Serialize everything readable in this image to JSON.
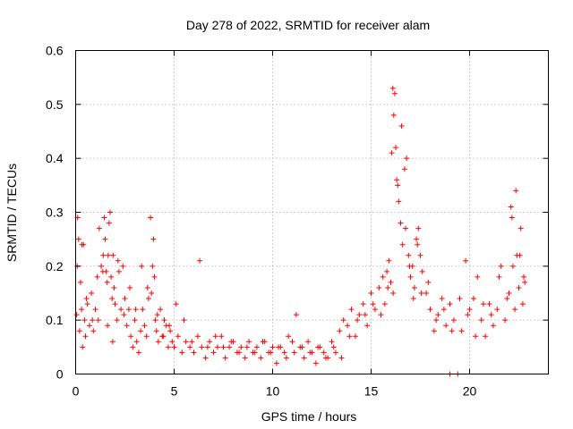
{
  "chart_data": {
    "type": "scatter",
    "title": "Day 278 of 2022, SRMTID for receiver alam",
    "xlabel": "GPS time / hours",
    "ylabel": "SRMTID / TECUs",
    "xlim": [
      0,
      24
    ],
    "ylim": [
      0,
      0.6
    ],
    "xticks": [
      0,
      5,
      10,
      15,
      20
    ],
    "yticks": [
      0,
      0.1,
      0.2,
      0.3,
      0.4,
      0.5,
      0.6
    ],
    "xtick_labels": [
      "0",
      "5",
      "10",
      "15",
      "20"
    ],
    "ytick_labels": [
      "0",
      "0.1",
      "0.2",
      "0.3",
      "0.4",
      "0.5",
      "0.6"
    ],
    "grid": true,
    "marker": "+",
    "series": [
      {
        "name": "alam",
        "color": "#ff0000",
        "x": [
          0.05,
          0.1,
          0.15,
          0.2,
          0.25,
          0.3,
          0.35,
          0.4,
          0.45,
          0.5,
          0.6,
          0.7,
          0.8,
          0.9,
          1.0,
          1.1,
          1.2,
          1.3,
          1.4,
          1.45,
          1.5,
          1.55,
          1.6,
          1.65,
          1.7,
          1.75,
          1.8,
          1.85,
          1.9,
          1.95,
          2.0,
          2.1,
          2.2,
          2.3,
          2.4,
          2.5,
          2.6,
          2.7,
          2.8,
          2.9,
          3.0,
          3.1,
          3.2,
          3.3,
          3.4,
          3.5,
          3.6,
          3.7,
          3.8,
          3.9,
          3.95,
          4.0,
          4.05,
          4.1,
          4.2,
          4.3,
          4.4,
          4.5,
          4.6,
          4.7,
          4.8,
          4.9,
          5.0,
          5.2,
          5.4,
          5.6,
          5.8,
          6.0,
          6.2,
          6.4,
          6.6,
          6.8,
          7.0,
          7.2,
          7.4,
          7.6,
          7.8,
          8.0,
          8.2,
          8.4,
          8.6,
          8.8,
          9.0,
          9.2,
          9.4,
          9.6,
          9.8,
          10.0,
          10.2,
          10.4,
          10.6,
          10.8,
          11.0,
          11.2,
          11.4,
          11.6,
          11.8,
          12.0,
          12.2,
          12.4,
          12.6,
          12.8,
          13.0,
          13.2,
          13.4,
          13.6,
          13.8,
          14.0,
          14.2,
          14.4,
          14.6,
          14.8,
          15.0,
          15.2,
          15.4,
          15.6,
          15.7,
          15.8,
          15.9,
          16.0,
          16.05,
          16.1,
          16.15,
          16.2,
          16.25,
          16.3,
          16.4,
          16.5,
          16.6,
          16.7,
          16.8,
          16.9,
          17.0,
          17.1,
          17.2,
          17.3,
          17.4,
          17.5,
          17.6,
          17.8,
          18.0,
          18.2,
          18.4,
          18.6,
          18.8,
          19.0,
          19.2,
          19.4,
          19.6,
          19.8,
          20.0,
          20.2,
          20.4,
          20.6,
          20.8,
          21.0,
          21.2,
          21.4,
          21.6,
          21.8,
          22.0,
          22.1,
          22.2,
          22.3,
          22.4,
          22.5,
          22.6,
          22.7,
          22.8,
          0.08,
          0.32,
          0.55,
          0.85,
          1.15,
          1.38,
          1.62,
          1.88,
          2.15,
          2.45,
          2.75,
          3.05,
          3.35,
          3.65,
          3.85,
          4.15,
          4.45,
          4.75,
          5.1,
          5.5,
          5.9,
          6.3,
          6.7,
          7.1,
          7.5,
          7.9,
          8.3,
          8.7,
          9.1,
          9.5,
          9.9,
          10.3,
          10.7,
          11.1,
          11.5,
          11.9,
          12.3,
          12.7,
          13.1,
          13.5,
          13.9,
          14.3,
          14.7,
          15.1,
          15.5,
          15.85,
          16.12,
          16.35,
          16.55,
          16.75,
          16.95,
          17.15,
          17.35,
          17.55,
          17.9,
          18.3,
          18.7,
          19.1,
          19.5,
          19.9,
          20.3,
          20.7,
          21.1,
          21.5,
          21.9,
          22.15,
          22.35,
          22.55,
          22.75,
          19.0
        ],
        "y": [
          0.11,
          0.29,
          0.25,
          0.08,
          0.17,
          0.12,
          0.05,
          0.24,
          0.1,
          0.07,
          0.13,
          0.09,
          0.15,
          0.08,
          0.12,
          0.18,
          0.27,
          0.2,
          0.22,
          0.29,
          0.25,
          0.19,
          0.17,
          0.22,
          0.28,
          0.3,
          0.18,
          0.14,
          0.22,
          0.16,
          0.13,
          0.1,
          0.19,
          0.12,
          0.2,
          0.14,
          0.09,
          0.12,
          0.07,
          0.05,
          0.1,
          0.06,
          0.04,
          0.08,
          0.12,
          0.09,
          0.07,
          0.14,
          0.29,
          0.2,
          0.25,
          0.18,
          0.1,
          0.08,
          0.06,
          0.12,
          0.07,
          0.1,
          0.09,
          0.05,
          0.08,
          0.06,
          0.05,
          0.07,
          0.04,
          0.06,
          0.05,
          0.04,
          0.07,
          0.05,
          0.03,
          0.06,
          0.04,
          0.05,
          0.07,
          0.03,
          0.05,
          0.06,
          0.04,
          0.05,
          0.03,
          0.06,
          0.04,
          0.05,
          0.03,
          0.06,
          0.04,
          0.05,
          0.02,
          0.05,
          0.04,
          0.07,
          0.06,
          0.11,
          0.05,
          0.03,
          0.06,
          0.04,
          0.02,
          0.05,
          0.04,
          0.03,
          0.06,
          0.04,
          0.08,
          0.1,
          0.09,
          0.12,
          0.07,
          0.11,
          0.13,
          0.09,
          0.15,
          0.12,
          0.16,
          0.18,
          0.13,
          0.19,
          0.21,
          0.17,
          0.41,
          0.53,
          0.48,
          0.52,
          0.42,
          0.36,
          0.32,
          0.28,
          0.24,
          0.38,
          0.4,
          0.22,
          0.18,
          0.2,
          0.16,
          0.25,
          0.27,
          0.22,
          0.19,
          0.15,
          0.12,
          0.08,
          0.11,
          0.14,
          0.09,
          0.13,
          0.1,
          0.0,
          0.08,
          0.21,
          0.12,
          0.14,
          0.18,
          0.1,
          0.07,
          0.13,
          0.09,
          0.12,
          0.2,
          0.1,
          0.15,
          0.31,
          0.2,
          0.12,
          0.22,
          0.16,
          0.27,
          0.13,
          0.17,
          0.2,
          0.24,
          0.14,
          0.1,
          0.1,
          0.19,
          0.09,
          0.06,
          0.21,
          0.11,
          0.16,
          0.12,
          0.2,
          0.16,
          0.15,
          0.11,
          0.07,
          0.09,
          0.13,
          0.1,
          0.06,
          0.21,
          0.05,
          0.07,
          0.05,
          0.06,
          0.04,
          0.05,
          0.04,
          0.06,
          0.04,
          0.05,
          0.03,
          0.04,
          0.05,
          0.04,
          0.05,
          0.03,
          0.05,
          0.03,
          0.07,
          0.1,
          0.11,
          0.13,
          0.11,
          0.16,
          0.15,
          0.35,
          0.46,
          0.27,
          0.2,
          0.14,
          0.24,
          0.15,
          0.17,
          0.1,
          0.12,
          0.08,
          0.14,
          0.11,
          0.07,
          0.13,
          0.11,
          0.18,
          0.14,
          0.29,
          0.34,
          0.22,
          0.18,
          0.0
        ]
      }
    ]
  }
}
